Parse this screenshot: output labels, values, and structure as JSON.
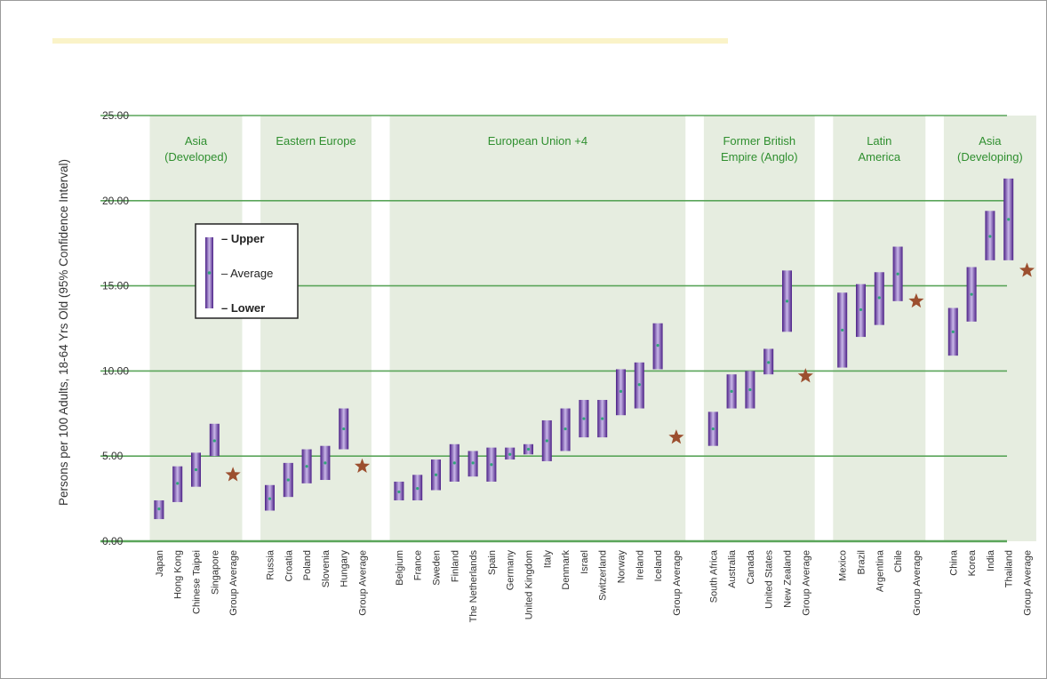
{
  "chart_data": {
    "type": "range",
    "title": "",
    "ylabel": "Persons per 100 Adults, 18-64 Yrs Old (95% Confidence Interval)",
    "ylim": [
      0,
      25
    ],
    "yticks": [
      "0.00",
      "5.00",
      "10.00",
      "15.00",
      "20.00",
      "25.00"
    ],
    "legend": {
      "upper": "– Upper",
      "average": "– Average",
      "lower": "– Lower",
      "placement": "top-left"
    },
    "groups": [
      {
        "name": "Asia\n(Developed)",
        "items": [
          {
            "label": "Japan",
            "lower": 1.3,
            "avg": 1.9,
            "upper": 2.4
          },
          {
            "label": "Hong Kong",
            "lower": 2.3,
            "avg": 3.4,
            "upper": 4.4
          },
          {
            "label": "Chinese Taipei",
            "lower": 3.2,
            "avg": 4.2,
            "upper": 5.2
          },
          {
            "label": "Singapore",
            "lower": 5.0,
            "avg": 5.9,
            "upper": 6.9
          }
        ],
        "average": {
          "label": "Group Average",
          "value": 3.9
        }
      },
      {
        "name": "Eastern Europe",
        "items": [
          {
            "label": "Russia",
            "lower": 1.8,
            "avg": 2.5,
            "upper": 3.3
          },
          {
            "label": "Croatia",
            "lower": 2.6,
            "avg": 3.6,
            "upper": 4.6
          },
          {
            "label": "Poland",
            "lower": 3.4,
            "avg": 4.4,
            "upper": 5.4
          },
          {
            "label": "Slovenia",
            "lower": 3.6,
            "avg": 4.6,
            "upper": 5.6
          },
          {
            "label": "Hungary",
            "lower": 5.4,
            "avg": 6.6,
            "upper": 7.8
          }
        ],
        "average": {
          "label": "Group Average",
          "value": 4.4
        }
      },
      {
        "name": "European Union +4",
        "items": [
          {
            "label": "Belgium",
            "lower": 2.4,
            "avg": 2.9,
            "upper": 3.5
          },
          {
            "label": "France",
            "lower": 2.4,
            "avg": 3.1,
            "upper": 3.9
          },
          {
            "label": "Sweden",
            "lower": 3.0,
            "avg": 3.9,
            "upper": 4.8
          },
          {
            "label": "Finland",
            "lower": 3.5,
            "avg": 4.6,
            "upper": 5.7
          },
          {
            "label": "The Netherlands",
            "lower": 3.8,
            "avg": 4.6,
            "upper": 5.3
          },
          {
            "label": "Spain",
            "lower": 3.5,
            "avg": 4.5,
            "upper": 5.5
          },
          {
            "label": "Germany",
            "lower": 4.8,
            "avg": 5.1,
            "upper": 5.5
          },
          {
            "label": "United Kingdom",
            "lower": 5.1,
            "avg": 5.4,
            "upper": 5.7
          },
          {
            "label": "Italy",
            "lower": 4.7,
            "avg": 5.9,
            "upper": 7.1
          },
          {
            "label": "Denmark",
            "lower": 5.3,
            "avg": 6.6,
            "upper": 7.8
          },
          {
            "label": "Israel",
            "lower": 6.1,
            "avg": 7.2,
            "upper": 8.3
          },
          {
            "label": "Switzerland",
            "lower": 6.1,
            "avg": 7.2,
            "upper": 8.3
          },
          {
            "label": "Norway",
            "lower": 7.4,
            "avg": 8.8,
            "upper": 10.1
          },
          {
            "label": "Ireland",
            "lower": 7.8,
            "avg": 9.2,
            "upper": 10.5
          },
          {
            "label": "Iceland",
            "lower": 10.1,
            "avg": 11.5,
            "upper": 12.8
          }
        ],
        "average": {
          "label": "Group Average",
          "value": 6.1
        }
      },
      {
        "name": "Former British\nEmpire (Anglo)",
        "items": [
          {
            "label": "South Africa",
            "lower": 5.6,
            "avg": 6.6,
            "upper": 7.6
          },
          {
            "label": "Australia",
            "lower": 7.8,
            "avg": 8.8,
            "upper": 9.8
          },
          {
            "label": "Canada",
            "lower": 7.8,
            "avg": 8.9,
            "upper": 10.0
          },
          {
            "label": "United States",
            "lower": 9.8,
            "avg": 10.5,
            "upper": 11.3
          },
          {
            "label": "New Zealand",
            "lower": 12.3,
            "avg": 14.1,
            "upper": 15.9
          }
        ],
        "average": {
          "label": "Group Average",
          "value": 9.7
        }
      },
      {
        "name": "Latin\nAmerica",
        "items": [
          {
            "label": "Mexico",
            "lower": 10.2,
            "avg": 12.4,
            "upper": 14.6
          },
          {
            "label": "Brazil",
            "lower": 12.0,
            "avg": 13.6,
            "upper": 15.1
          },
          {
            "label": "Argentina",
            "lower": 12.7,
            "avg": 14.3,
            "upper": 15.8
          },
          {
            "label": "Chile",
            "lower": 14.1,
            "avg": 15.7,
            "upper": 17.3
          }
        ],
        "average": {
          "label": "Group Average",
          "value": 14.1
        }
      },
      {
        "name": "Asia\n(Developing)",
        "items": [
          {
            "label": "China",
            "lower": 10.9,
            "avg": 12.3,
            "upper": 13.7
          },
          {
            "label": "Korea",
            "lower": 12.9,
            "avg": 14.5,
            "upper": 16.1
          },
          {
            "label": "India",
            "lower": 16.5,
            "avg": 17.9,
            "upper": 19.4
          },
          {
            "label": "Thailand",
            "lower": 16.5,
            "avg": 18.9,
            "upper": 21.3
          }
        ],
        "average": {
          "label": "Group Average",
          "value": 15.9
        }
      }
    ],
    "colors": {
      "band": "#e6ede0",
      "grid": "#5aa55a",
      "bar_dark": "#4b1f86",
      "bar_light": "#c9b8e8",
      "avg_dot": "#2fa57a",
      "star": "#9c4f2f",
      "group_label": "#2f8f2f"
    }
  }
}
